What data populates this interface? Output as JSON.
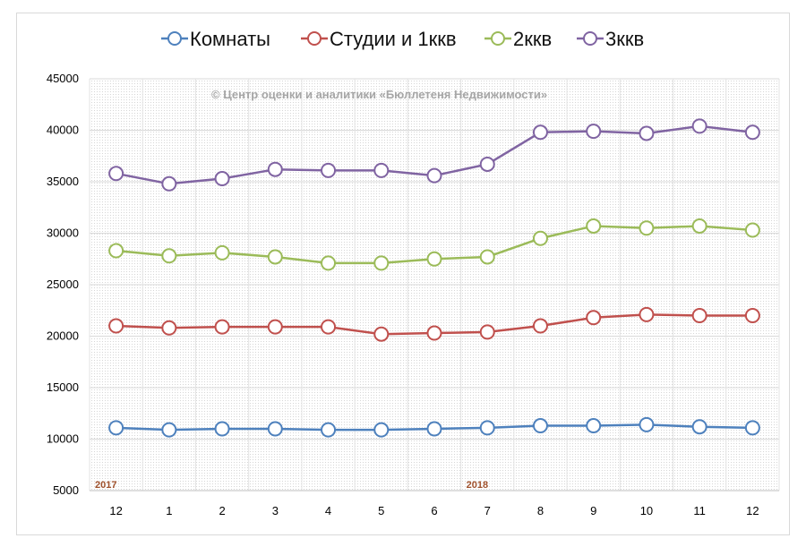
{
  "chart_data": {
    "type": "line",
    "title": "",
    "watermark": "© Центр оценки и аналитики «Бюллетеня Недвижимости»",
    "categories": [
      "12",
      "1",
      "2",
      "3",
      "4",
      "5",
      "6",
      "7",
      "8",
      "9",
      "10",
      "11",
      "12"
    ],
    "year_labels": [
      {
        "text": "2017",
        "category_index": 0
      },
      {
        "text": "2018",
        "category_index": 7
      }
    ],
    "ylim": [
      5000,
      45000
    ],
    "yticks": [
      5000,
      10000,
      15000,
      20000,
      25000,
      30000,
      35000,
      40000,
      45000
    ],
    "grid": true,
    "legend_position": "top",
    "series": [
      {
        "name": "Комнаты",
        "color": "#4e81bd",
        "values": [
          11100,
          10900,
          11000,
          11000,
          10900,
          10900,
          11000,
          11100,
          11300,
          11300,
          11400,
          11200,
          11100
        ]
      },
      {
        "name": "Студии и 1ккв",
        "color": "#c0504d",
        "values": [
          21000,
          20800,
          20900,
          20900,
          20900,
          20200,
          20300,
          20400,
          21000,
          21800,
          22100,
          22000,
          22000
        ]
      },
      {
        "name": "2ккв",
        "color": "#9bbb59",
        "values": [
          28300,
          27800,
          28100,
          27700,
          27100,
          27100,
          27500,
          27700,
          29500,
          30700,
          30500,
          30700,
          30300
        ]
      },
      {
        "name": "3ккв",
        "color": "#8064a2",
        "values": [
          35800,
          34800,
          35300,
          36200,
          36100,
          36100,
          35600,
          36700,
          39800,
          39900,
          39700,
          40400,
          39800
        ]
      }
    ]
  }
}
